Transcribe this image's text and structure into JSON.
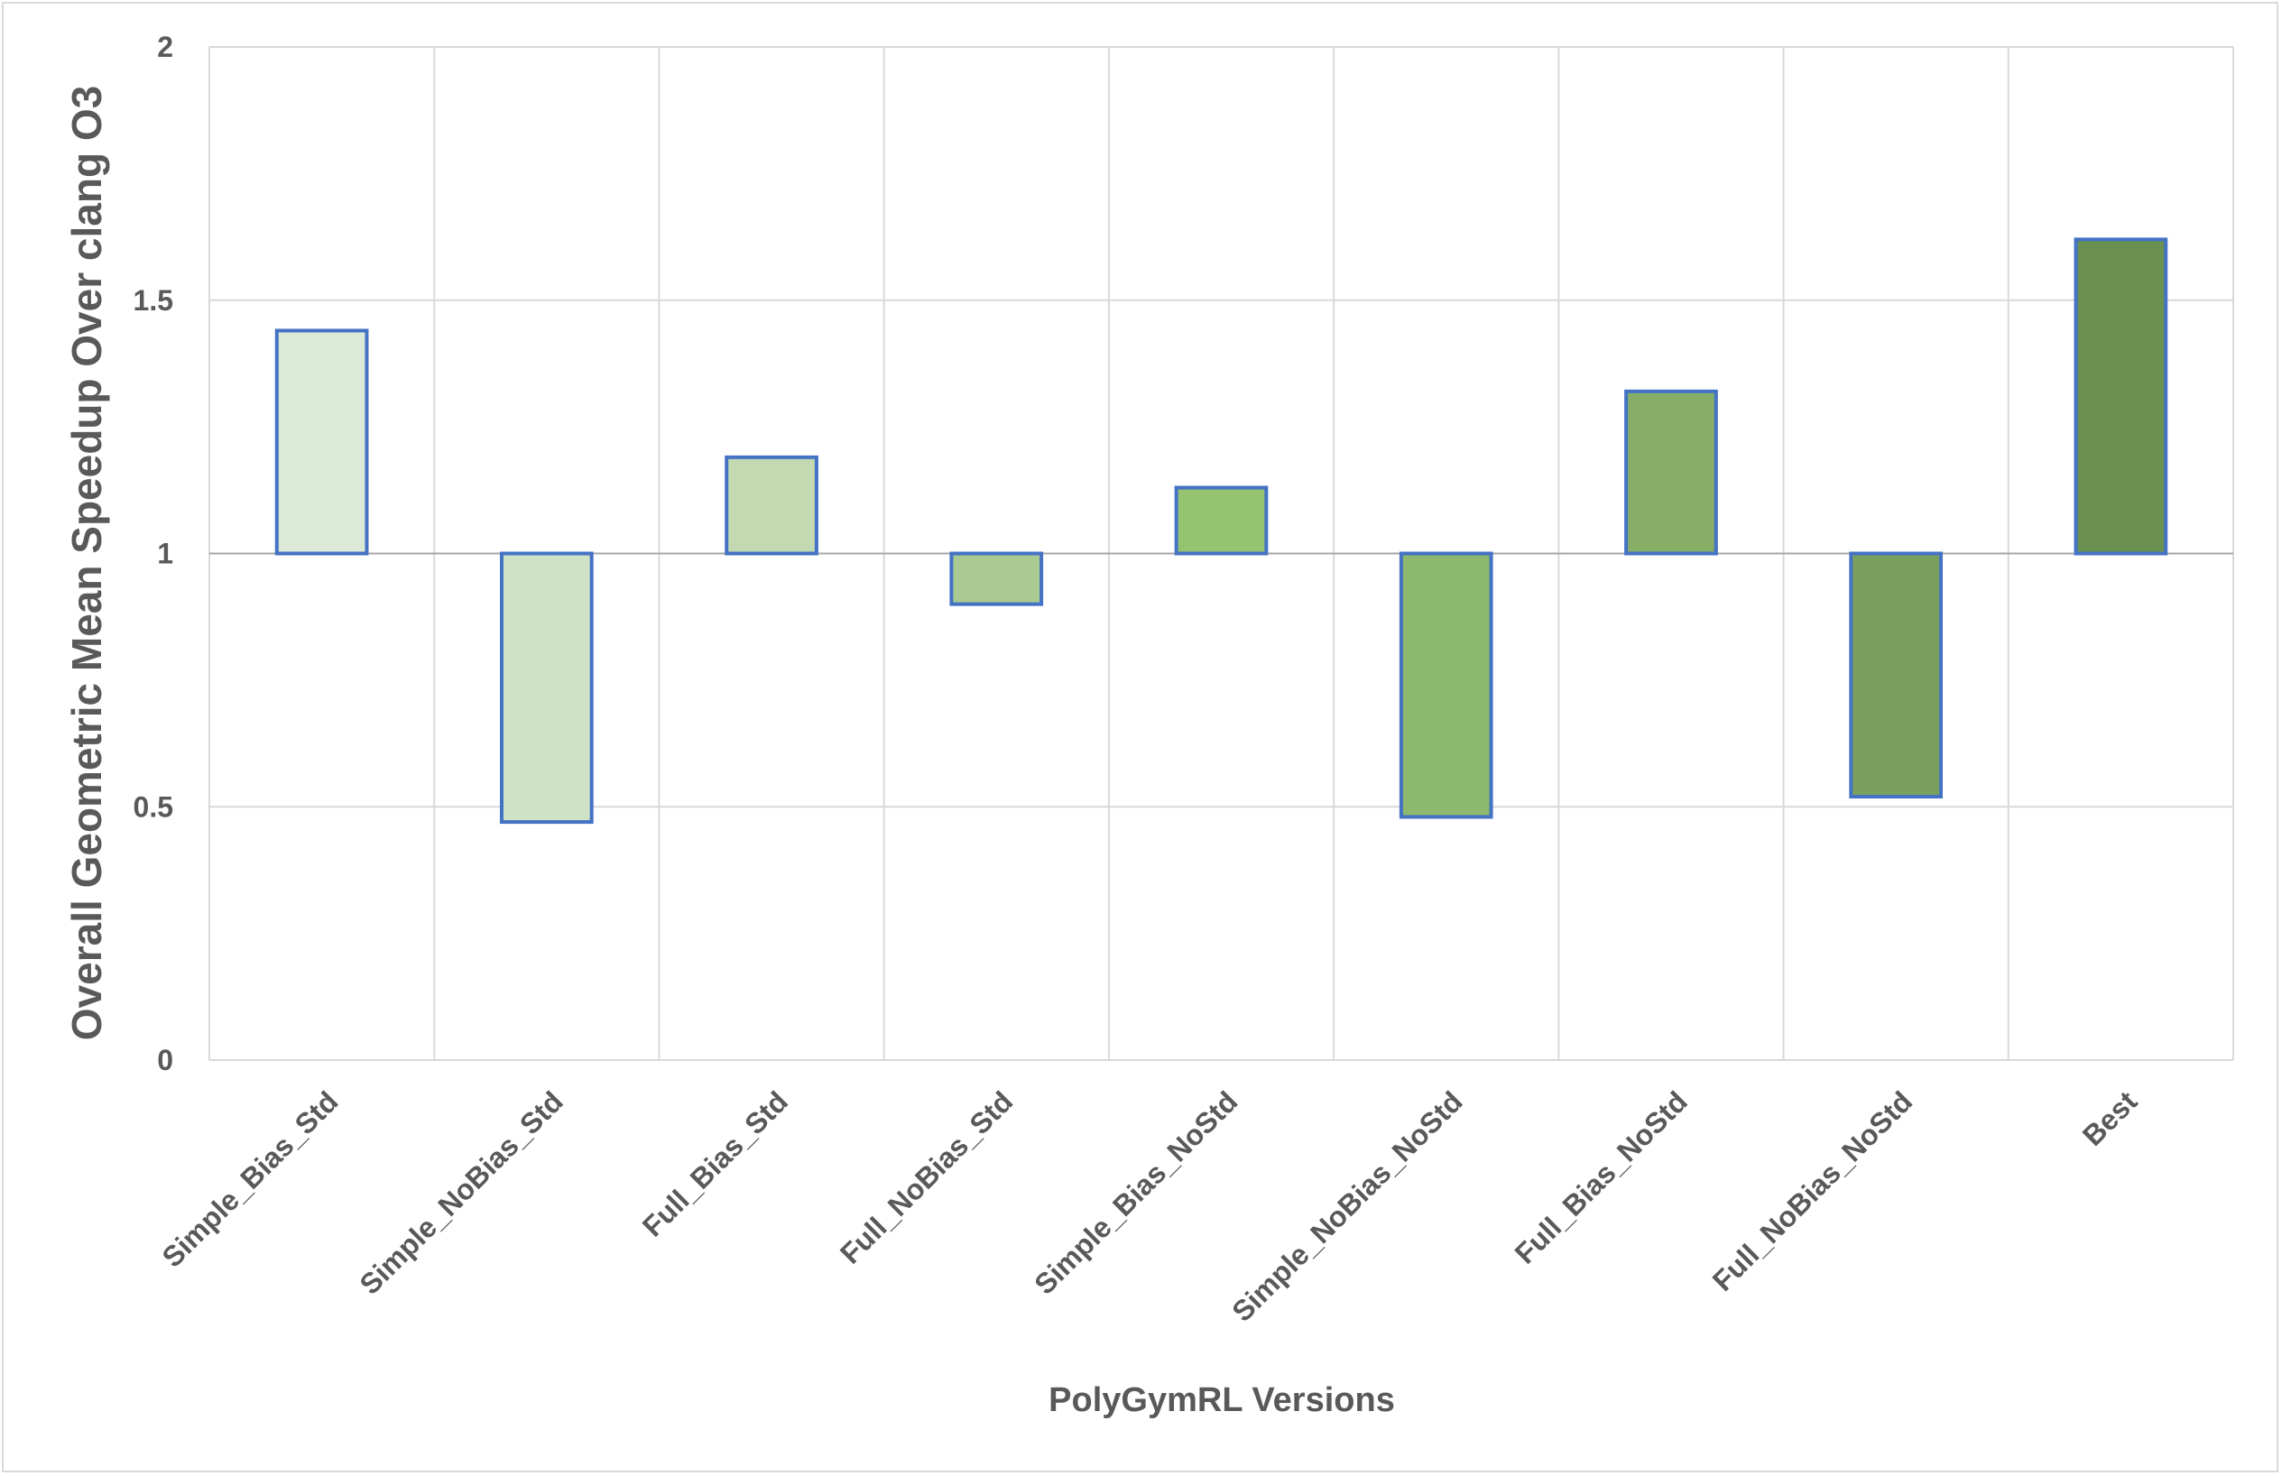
{
  "chart_data": {
    "type": "bar",
    "title": "",
    "xlabel": "PolyGymRL Versions",
    "ylabel": "Overall Geometric Mean Speedup Over clang O3",
    "ylim": [
      0,
      2
    ],
    "yticks": [
      0,
      0.5,
      1,
      1.5,
      2
    ],
    "ytick_labels": [
      "0",
      "0.5",
      "1",
      "1.5",
      "2"
    ],
    "baseline": 1,
    "grid": true,
    "categories": [
      "Simple_Bias_Std",
      "Simple_NoBias_Std",
      "Full_Bias_Std",
      "Full_NoBias_Std",
      "Simple_Bias_NoStd",
      "Simple_NoBias_NoStd",
      "Full_Bias_NoStd",
      "Full_NoBias_NoStd",
      "Best"
    ],
    "values": [
      1.44,
      0.47,
      1.19,
      0.9,
      1.13,
      0.48,
      1.32,
      0.52,
      1.62
    ],
    "bar_colors": [
      "#dde9d7",
      "#d0e2c6",
      "#c2d9b2",
      "#aaca93",
      "#95c370",
      "#8cb96d",
      "#86ae67",
      "#7aa05d",
      "#6a9150"
    ],
    "bar_border_color": "#4472c4",
    "grid_color": "#d9d9d9"
  }
}
